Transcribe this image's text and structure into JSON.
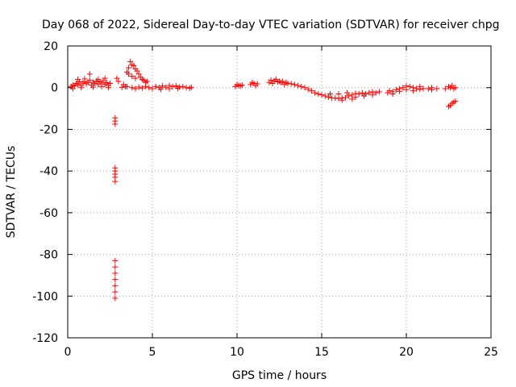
{
  "chart_data": {
    "type": "scatter",
    "title": "Day 068 of 2022, Sidereal Day-to-day VTEC variation (SDTVAR) for receiver chpg",
    "xlabel": "GPS time / hours",
    "ylabel": "SDTVAR / TECUs",
    "xlim": [
      0,
      25
    ],
    "ylim": [
      -120,
      20
    ],
    "xticks": [
      0,
      5,
      10,
      15,
      20,
      25
    ],
    "yticks": [
      20,
      0,
      -20,
      -40,
      -60,
      -80,
      -100,
      -120
    ],
    "grid": true,
    "marker": "+",
    "color": "#ff0000",
    "series": [
      {
        "name": "SDTVAR",
        "points": [
          [
            0.2,
            0.5
          ],
          [
            0.3,
            1.2
          ],
          [
            0.4,
            0.8
          ],
          [
            0.5,
            2.0
          ],
          [
            0.6,
            1.5
          ],
          [
            0.7,
            2.8
          ],
          [
            0.8,
            1.0
          ],
          [
            0.9,
            2.2
          ],
          [
            1.0,
            3.0
          ],
          [
            1.1,
            1.8
          ],
          [
            1.2,
            2.5
          ],
          [
            1.3,
            3.5
          ],
          [
            1.4,
            1.2
          ],
          [
            1.5,
            2.6
          ],
          [
            1.6,
            2.0
          ],
          [
            1.7,
            3.2
          ],
          [
            1.8,
            1.5
          ],
          [
            1.9,
            2.8
          ],
          [
            2.0,
            2.2
          ],
          [
            2.1,
            3.4
          ],
          [
            2.2,
            1.6
          ],
          [
            2.3,
            2.4
          ],
          [
            2.4,
            1.0
          ],
          [
            2.5,
            2.0
          ],
          [
            1.3,
            6.5
          ],
          [
            0.6,
            4.0
          ],
          [
            1.0,
            4.2
          ],
          [
            1.8,
            4.0
          ],
          [
            2.2,
            4.5
          ],
          [
            0.3,
            -0.5
          ],
          [
            0.8,
            0.0
          ],
          [
            1.5,
            0.3
          ],
          [
            2.0,
            0.5
          ],
          [
            2.4,
            0.0
          ],
          [
            2.8,
            -14.5
          ],
          [
            2.8,
            -16.0
          ],
          [
            2.8,
            -17.5
          ],
          [
            2.8,
            -38.5
          ],
          [
            2.8,
            -40.0
          ],
          [
            2.8,
            -41.5
          ],
          [
            2.8,
            -43.0
          ],
          [
            2.8,
            -45.0
          ],
          [
            2.8,
            -83.0
          ],
          [
            2.8,
            -86.0
          ],
          [
            2.8,
            -89.0
          ],
          [
            2.8,
            -92.0
          ],
          [
            2.8,
            -95.0
          ],
          [
            2.8,
            -98.0
          ],
          [
            2.8,
            -101.0
          ],
          [
            2.9,
            4.5
          ],
          [
            3.0,
            3.0
          ],
          [
            3.2,
            0.2
          ],
          [
            3.3,
            1.5
          ],
          [
            3.4,
            0.5
          ],
          [
            3.5,
            7.5
          ],
          [
            3.6,
            9.5
          ],
          [
            3.7,
            12.5
          ],
          [
            3.8,
            11.0
          ],
          [
            3.9,
            10.5
          ],
          [
            4.0,
            9.0
          ],
          [
            4.1,
            8.0
          ],
          [
            4.2,
            6.5
          ],
          [
            4.3,
            5.0
          ],
          [
            4.4,
            4.0
          ],
          [
            4.5,
            3.5
          ],
          [
            4.6,
            2.5
          ],
          [
            4.7,
            3.0
          ],
          [
            3.6,
            6.5
          ],
          [
            3.8,
            5.5
          ],
          [
            4.0,
            4.5
          ],
          [
            3.5,
            0.5
          ],
          [
            3.8,
            0.0
          ],
          [
            4.0,
            -0.5
          ],
          [
            4.2,
            0.3
          ],
          [
            4.4,
            -0.2
          ],
          [
            4.6,
            0.5
          ],
          [
            4.8,
            0.0
          ],
          [
            5.0,
            -0.5
          ],
          [
            5.2,
            0.5
          ],
          [
            5.4,
            0.0
          ],
          [
            5.6,
            0.8
          ],
          [
            5.8,
            0.2
          ],
          [
            6.0,
            1.0
          ],
          [
            6.2,
            0.5
          ],
          [
            6.4,
            0.8
          ],
          [
            6.6,
            0.3
          ],
          [
            6.8,
            0.5
          ],
          [
            7.0,
            0.0
          ],
          [
            7.2,
            -0.3
          ],
          [
            7.3,
            0.2
          ],
          [
            5.5,
            -0.8
          ],
          [
            6.0,
            -0.5
          ],
          [
            6.5,
            -0.3
          ],
          [
            9.9,
            0.5
          ],
          [
            10.0,
            1.5
          ],
          [
            10.1,
            1.0
          ],
          [
            10.2,
            0.8
          ],
          [
            10.3,
            1.2
          ],
          [
            10.8,
            1.5
          ],
          [
            10.9,
            2.5
          ],
          [
            11.0,
            2.0
          ],
          [
            11.1,
            1.0
          ],
          [
            11.2,
            1.8
          ],
          [
            11.9,
            2.5
          ],
          [
            12.0,
            3.5
          ],
          [
            12.1,
            2.0
          ],
          [
            12.2,
            3.2
          ],
          [
            12.3,
            4.0
          ],
          [
            12.4,
            2.8
          ],
          [
            12.5,
            3.0
          ],
          [
            12.6,
            2.5
          ],
          [
            12.7,
            3.0
          ],
          [
            12.8,
            1.5
          ],
          [
            12.9,
            2.5
          ],
          [
            13.0,
            2.0
          ],
          [
            13.2,
            1.8
          ],
          [
            13.4,
            1.5
          ],
          [
            13.6,
            1.0
          ],
          [
            13.8,
            0.5
          ],
          [
            14.0,
            0.0
          ],
          [
            14.2,
            -0.8
          ],
          [
            14.4,
            -1.5
          ],
          [
            14.6,
            -2.5
          ],
          [
            14.8,
            -3.0
          ],
          [
            15.0,
            -3.5
          ],
          [
            15.2,
            -4.0
          ],
          [
            15.4,
            -4.5
          ],
          [
            15.6,
            -5.0
          ],
          [
            15.8,
            -5.0
          ],
          [
            16.0,
            -5.2
          ],
          [
            16.2,
            -5.0
          ],
          [
            16.4,
            -4.8
          ],
          [
            16.6,
            -4.0
          ],
          [
            16.8,
            -3.5
          ],
          [
            17.0,
            -2.8
          ],
          [
            17.2,
            -3.0
          ],
          [
            17.4,
            -2.5
          ],
          [
            17.6,
            -3.0
          ],
          [
            17.8,
            -2.5
          ],
          [
            18.0,
            -2.0
          ],
          [
            18.2,
            -2.5
          ],
          [
            18.4,
            -2.0
          ],
          [
            16.0,
            -3.0
          ],
          [
            16.5,
            -2.5
          ],
          [
            17.0,
            -4.5
          ],
          [
            17.5,
            -4.0
          ],
          [
            18.0,
            -3.5
          ],
          [
            15.5,
            -3.0
          ],
          [
            16.2,
            -6.0
          ],
          [
            16.8,
            -5.5
          ],
          [
            18.9,
            -2.5
          ],
          [
            19.0,
            -1.5
          ],
          [
            19.2,
            -2.0
          ],
          [
            19.4,
            -1.0
          ],
          [
            19.6,
            -0.5
          ],
          [
            19.8,
            0.0
          ],
          [
            20.0,
            0.8
          ],
          [
            20.2,
            0.5
          ],
          [
            20.4,
            0.0
          ],
          [
            20.6,
            -0.5
          ],
          [
            20.8,
            0.5
          ],
          [
            21.0,
            -0.5
          ],
          [
            19.2,
            -3.0
          ],
          [
            19.6,
            -1.8
          ],
          [
            20.0,
            -1.0
          ],
          [
            20.4,
            -1.5
          ],
          [
            20.8,
            -0.8
          ],
          [
            21.3,
            -0.5
          ],
          [
            21.5,
            0.0
          ],
          [
            21.5,
            -1.0
          ],
          [
            21.8,
            -0.5
          ],
          [
            22.3,
            -0.5
          ],
          [
            22.5,
            0.5
          ],
          [
            22.6,
            0.0
          ],
          [
            22.7,
            1.0
          ],
          [
            22.8,
            -0.5
          ],
          [
            22.9,
            0.0
          ],
          [
            22.5,
            -9.0
          ],
          [
            22.6,
            -8.5
          ],
          [
            22.7,
            -7.5
          ],
          [
            22.8,
            -7.0
          ],
          [
            22.9,
            -6.5
          ]
        ]
      }
    ]
  }
}
